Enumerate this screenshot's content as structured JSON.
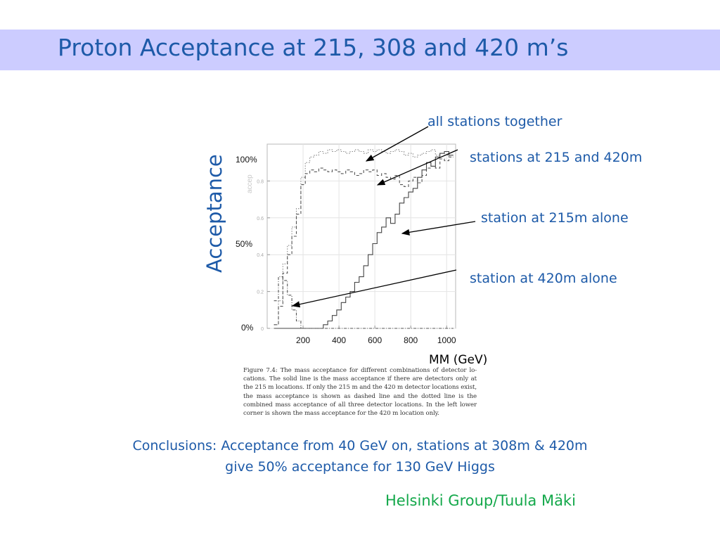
{
  "slide": {
    "title": "Proton Acceptance at 215, 308 and 420 m’s",
    "acceptance_label": "Acceptance",
    "pct_labels": [
      "100%",
      "50%",
      "0%"
    ],
    "annotations": [
      "all stations together",
      "stations at 215 and 420m",
      "station at 215m alone",
      "station at 420m alone"
    ],
    "x_unit": "MM (GeV)",
    "caption": "Figure 7.4: The mass acceptance for different combinations of detector lo-cations. The solid line is the mass acceptance if there are detectors only at the 215 m locations. If only the 215 m and the 420 m detector locations exist, the mass acceptance is shown as dashed line and the dotted line is the combined mass acceptance of all three detector locations. In the left lower corner is shown the mass acceptance for the 420 m location only.",
    "conclusion_line1": "Conclusions: Acceptance from 40 GeV on, stations at 308m & 420m",
    "conclusion_line2": "give 50% acceptance for 130 GeV Higgs",
    "credit": "Helsinki Group/Tuula Mäki"
  },
  "chart_data": {
    "type": "line",
    "xlim": [
      0,
      1050
    ],
    "ylim": [
      0,
      1.0
    ],
    "x_ticks": [
      "200",
      "400",
      "600",
      "800",
      "1000"
    ],
    "x_tick_values": [
      200,
      400,
      600,
      800,
      1000
    ],
    "y_ticks": [
      "0",
      "0.2",
      "0.4",
      "0.6",
      "0.8"
    ],
    "y_tick_values": [
      0,
      0.2,
      0.4,
      0.6,
      0.8
    ],
    "y_axis_faint_label": "accep",
    "grid": true,
    "step": true,
    "x": [
      50,
      75,
      100,
      125,
      150,
      175,
      200,
      225,
      250,
      275,
      300,
      325,
      350,
      375,
      400,
      425,
      450,
      475,
      500,
      525,
      550,
      575,
      600,
      625,
      650,
      675,
      700,
      725,
      750,
      775,
      800,
      825,
      850,
      875,
      900,
      925,
      950,
      975,
      1000,
      1025
    ],
    "series": [
      {
        "style": "dotted",
        "values": [
          0.02,
          0.15,
          0.35,
          0.45,
          0.55,
          0.65,
          0.82,
          0.9,
          0.93,
          0.94,
          0.96,
          0.95,
          0.97,
          0.96,
          0.97,
          0.96,
          0.95,
          0.96,
          0.97,
          0.96,
          0.95,
          0.97,
          0.96,
          0.97,
          0.96,
          0.95,
          0.96,
          0.97,
          0.96,
          0.94,
          0.95,
          0.93,
          0.94,
          0.95,
          0.96,
          0.97,
          0.94,
          0.95,
          0.94,
          0.93
        ]
      },
      {
        "style": "dashed",
        "values": [
          0.02,
          0.12,
          0.3,
          0.4,
          0.5,
          0.62,
          0.78,
          0.84,
          0.86,
          0.85,
          0.87,
          0.86,
          0.85,
          0.86,
          0.85,
          0.84,
          0.86,
          0.85,
          0.83,
          0.84,
          0.86,
          0.85,
          0.86,
          0.83,
          0.84,
          0.82,
          0.81,
          0.83,
          0.78,
          0.77,
          0.8,
          0.82,
          0.79,
          0.83,
          0.87,
          0.88,
          0.87,
          0.92,
          0.91,
          0.93
        ]
      },
      {
        "style": "solid",
        "values": [
          0.0,
          0.0,
          0.0,
          0.0,
          0.0,
          0.0,
          0.0,
          0.0,
          0.0,
          0.0,
          0.0,
          0.02,
          0.04,
          0.07,
          0.1,
          0.14,
          0.17,
          0.2,
          0.25,
          0.28,
          0.34,
          0.4,
          0.46,
          0.52,
          0.55,
          0.6,
          0.57,
          0.62,
          0.68,
          0.71,
          0.74,
          0.76,
          0.82,
          0.86,
          0.9,
          0.88,
          0.93,
          0.95,
          0.96,
          0.94
        ]
      },
      {
        "style": "dashdot",
        "values": [
          0.15,
          0.28,
          0.26,
          0.18,
          0.1,
          0.04,
          0.0,
          0.0,
          0.0,
          0.0,
          0.0,
          0.0,
          0.0,
          0.0,
          0.0,
          0.0,
          0.0,
          0.0,
          0.0,
          0.0,
          0.0,
          0.0,
          0.0,
          0.0,
          0.0,
          0.0,
          0.0,
          0.0,
          0.0,
          0.0,
          0.0,
          0.0,
          0.0,
          0.0,
          0.0,
          0.0,
          0.0,
          0.0,
          0.0,
          0.0
        ]
      }
    ]
  }
}
